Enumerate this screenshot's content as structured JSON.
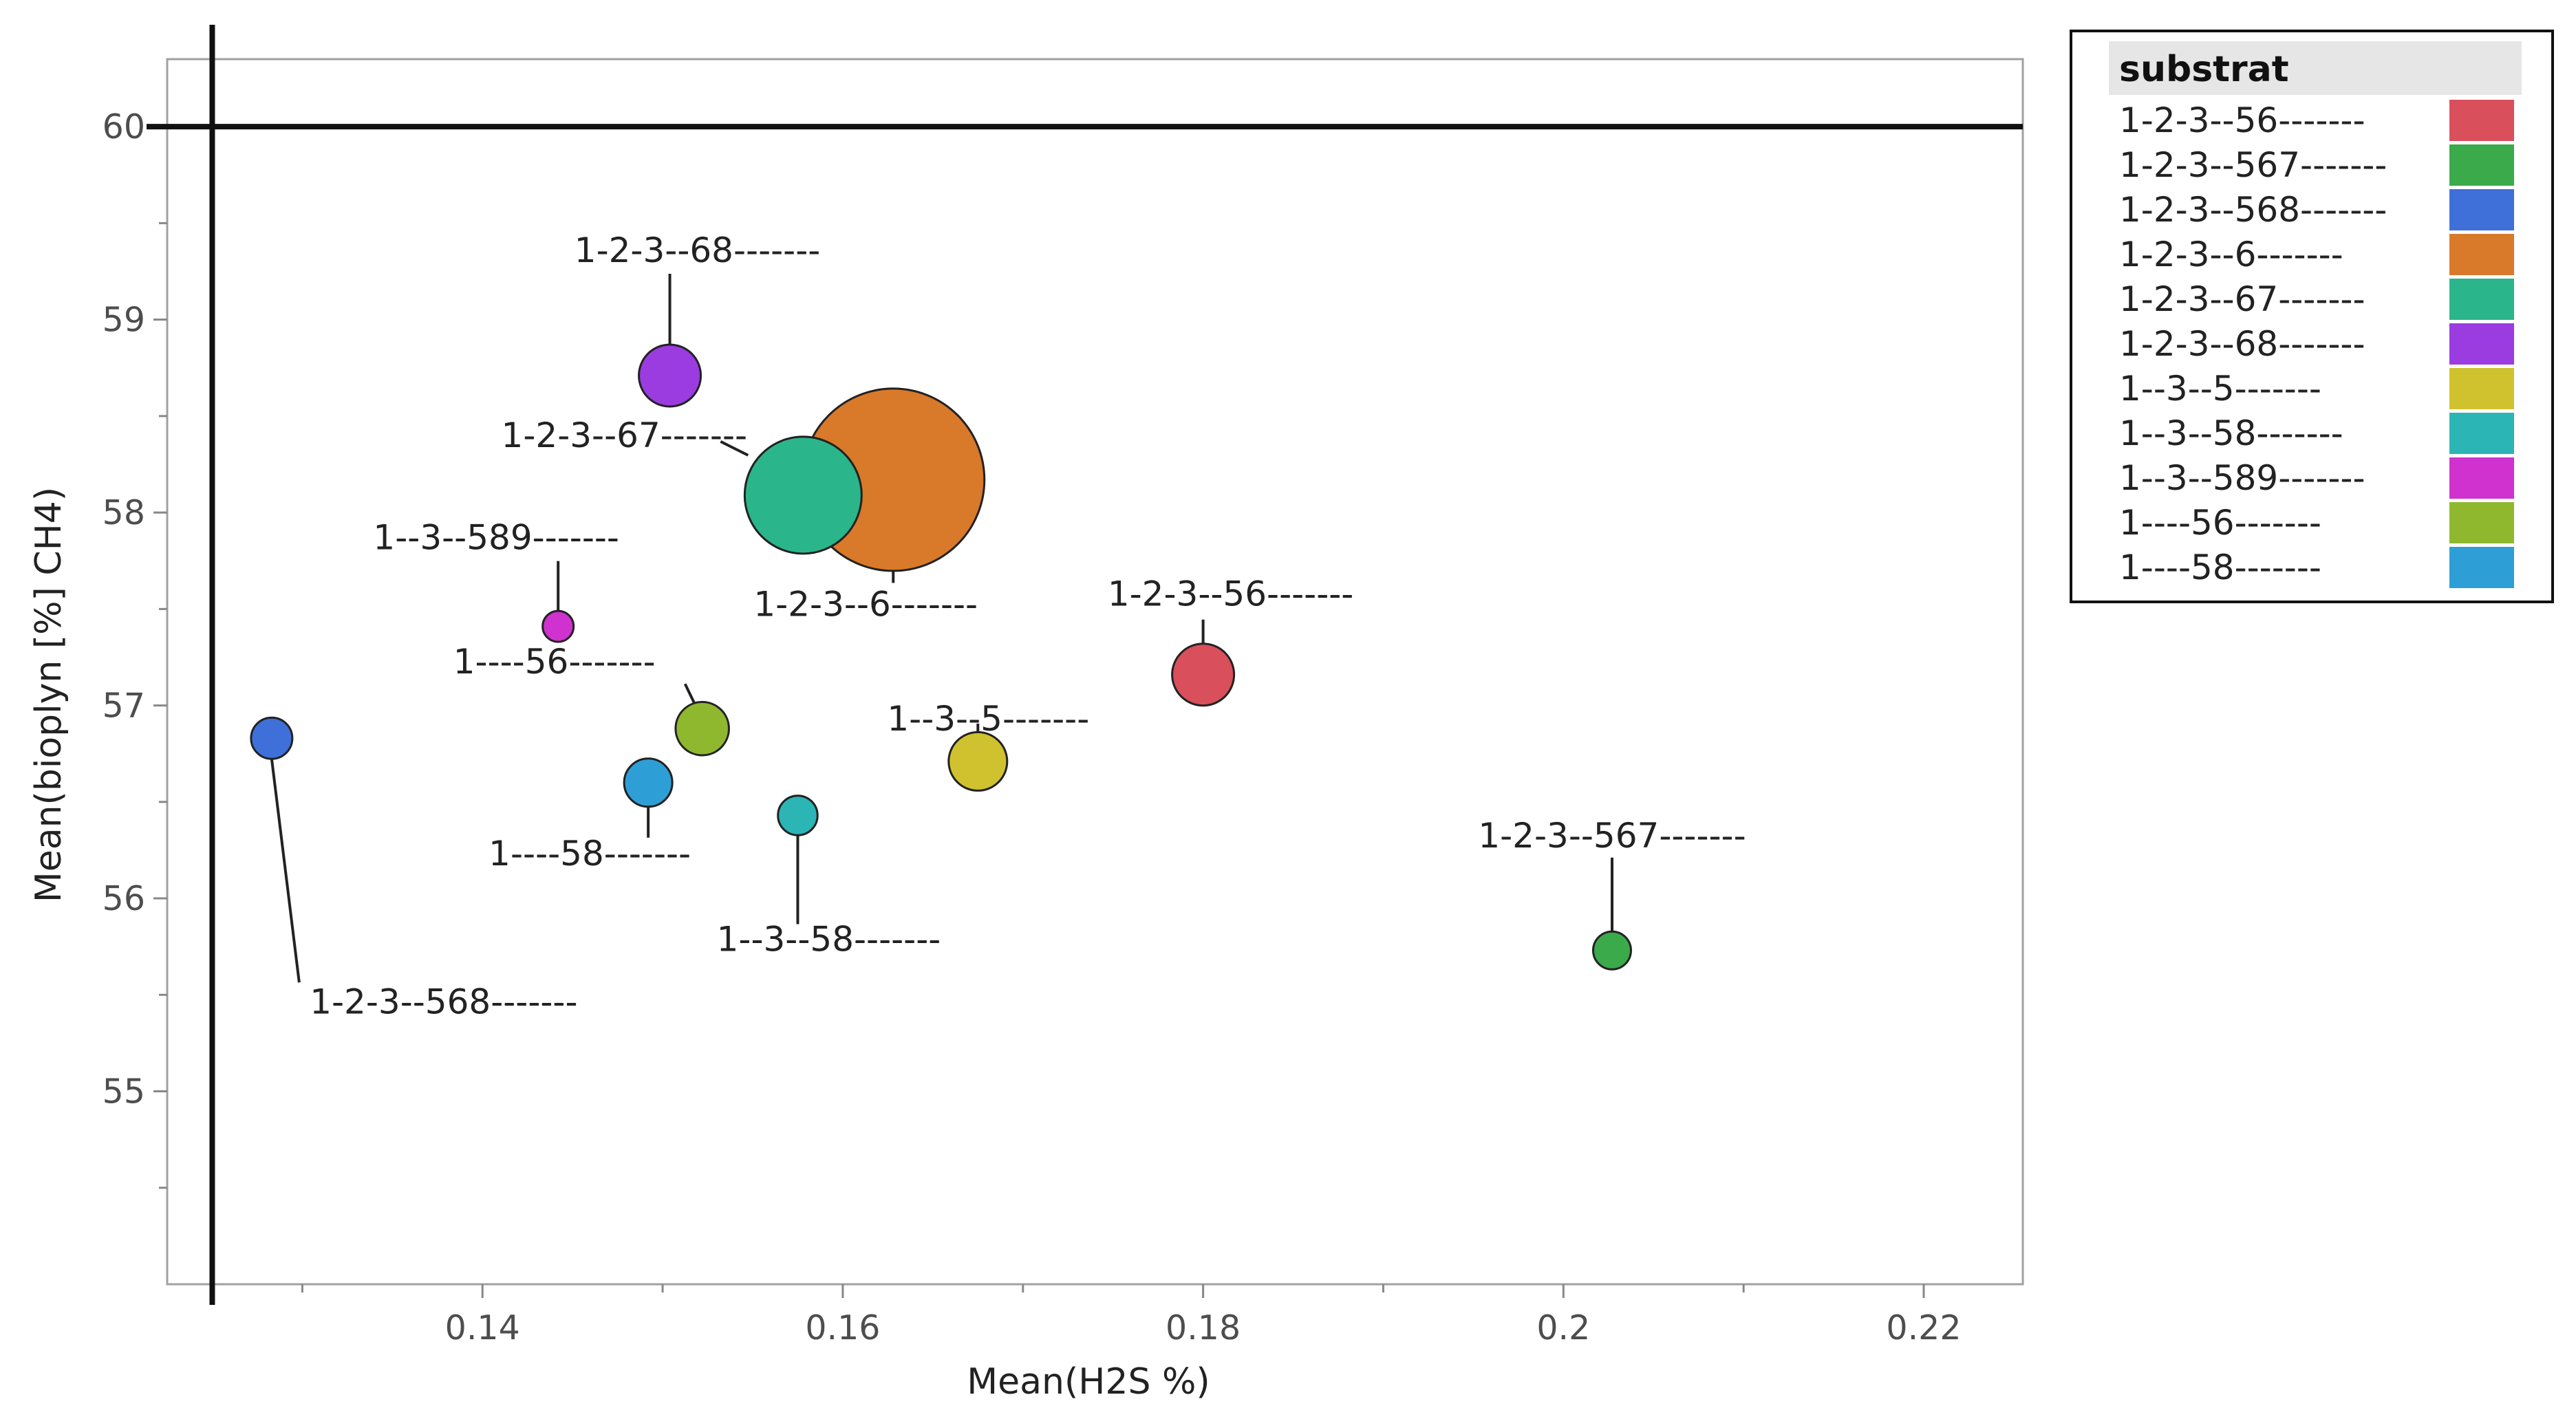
{
  "chart_data": {
    "type": "scatter",
    "xlabel": "Mean(H2S %)",
    "ylabel": "Mean(bioplyn [%] CH4)",
    "xlim": [
      0.1225,
      0.2255
    ],
    "ylim": [
      54.0,
      60.35
    ],
    "x_ticks": [
      "0.14",
      "0.16",
      "0.18",
      "0.2",
      "0.22"
    ],
    "y_ticks": [
      "55",
      "56",
      "57",
      "58",
      "59",
      "60"
    ],
    "reference_lines": {
      "x": 0.125,
      "y": 60
    },
    "legend": {
      "title": "substrat",
      "position": "right",
      "entries": [
        {
          "label": "1-2-3--56-------",
          "color": "#d94f5c"
        },
        {
          "label": "1-2-3--567-------",
          "color": "#3aaa4b"
        },
        {
          "label": "1-2-3--568-------",
          "color": "#3f6fd9"
        },
        {
          "label": "1-2-3--6-------",
          "color": "#d9792a"
        },
        {
          "label": "1-2-3--67-------",
          "color": "#2bb58a"
        },
        {
          "label": "1-2-3--68-------",
          "color": "#9a3ce0"
        },
        {
          "label": "1--3--5-------",
          "color": "#cfc22e"
        },
        {
          "label": "1--3--58-------",
          "color": "#2bb5b5"
        },
        {
          "label": "1--3--589-------",
          "color": "#cf32cf"
        },
        {
          "label": "1----56-------",
          "color": "#8fb82e"
        },
        {
          "label": "1----58-------",
          "color": "#2e9fd6"
        }
      ]
    },
    "points": [
      {
        "label": "1-2-3--56-------",
        "x": 0.18,
        "y": 57.16,
        "size": 1.8,
        "color": "#d94f5c"
      },
      {
        "label": "1-2-3--567-------",
        "x": 0.2027,
        "y": 55.73,
        "size": 1.1,
        "color": "#3aaa4b"
      },
      {
        "label": "1-2-3--568-------",
        "x": 0.1283,
        "y": 56.83,
        "size": 1.2,
        "color": "#3f6fd9"
      },
      {
        "label": "1-2-3--6-------",
        "x": 0.1628,
        "y": 58.17,
        "size": 5.3,
        "color": "#d9792a"
      },
      {
        "label": "1-2-3--67-------",
        "x": 0.1578,
        "y": 58.09,
        "size": 3.4,
        "color": "#2bb58a"
      },
      {
        "label": "1-2-3--68-------",
        "x": 0.1504,
        "y": 58.71,
        "size": 1.8,
        "color": "#9a3ce0"
      },
      {
        "label": "1--3--5-------",
        "x": 0.1675,
        "y": 56.71,
        "size": 1.7,
        "color": "#cfc22e"
      },
      {
        "label": "1--3--58-------",
        "x": 0.1575,
        "y": 56.43,
        "size": 1.15,
        "color": "#2bb5b5"
      },
      {
        "label": "1--3--589-------",
        "x": 0.1442,
        "y": 57.41,
        "size": 0.9,
        "color": "#cf32cf"
      },
      {
        "label": "1----56-------",
        "x": 0.1522,
        "y": 56.88,
        "size": 1.55,
        "color": "#8fb82e"
      },
      {
        "label": "1----58-------",
        "x": 0.1492,
        "y": 56.6,
        "size": 1.4,
        "color": "#2e9fd6"
      }
    ]
  }
}
